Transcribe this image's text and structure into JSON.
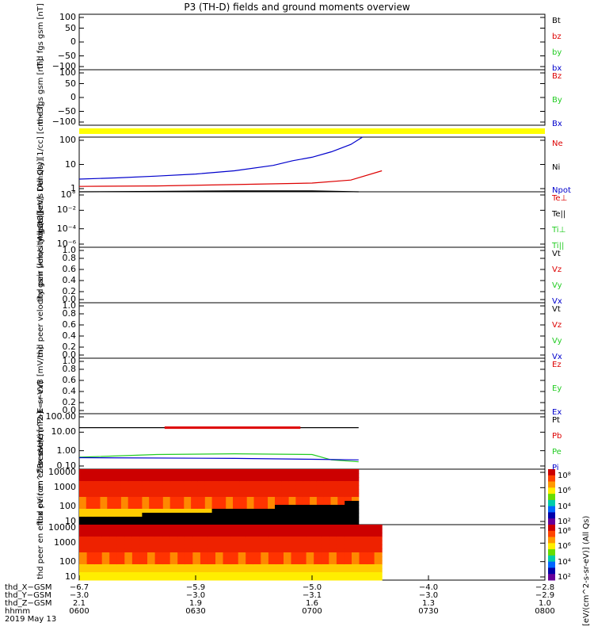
{
  "title": "P3 (TH-D) fields and ground moments overview",
  "panels": [
    {
      "id": "fgs",
      "ylabel": [
        "thd",
        "fgs",
        "gsm",
        "[nT]"
      ],
      "ticks": [
        "100",
        "50",
        "0",
        "−50",
        "−100"
      ],
      "legend": [
        {
          "t": "Bt",
          "c": "#000000"
        },
        {
          "t": "bz",
          "c": "#dd0000"
        },
        {
          "t": "by",
          "c": "#22cc22"
        },
        {
          "t": "bx",
          "c": "#0000cc"
        }
      ]
    },
    {
      "id": "fgs2",
      "ylabel": [
        "thd",
        "fgs",
        "gsm",
        "[nT]"
      ],
      "ticks": [
        "100",
        "50",
        "0",
        "−50",
        "−100"
      ],
      "legend": [
        {
          "t": "Bz",
          "c": "#dd0000"
        },
        {
          "t": "By",
          "c": "#22cc22"
        },
        {
          "t": "Bx",
          "c": "#0000cc"
        }
      ]
    },
    {
      "id": "density",
      "ylabel": [
        "Density",
        "[1/cc]",
        "[cm−3]"
      ],
      "ticks": [
        "100",
        "10",
        "1"
      ],
      "legend": [
        {
          "t": "Ne",
          "c": "#dd0000"
        },
        {
          "t": "Ni",
          "c": "#000000"
        },
        {
          "t": "Npot",
          "c": "#0000cc"
        }
      ]
    },
    {
      "id": "temp",
      "ylabel": [
        "mgat3",
        "[eV]"
      ],
      "ticks": [
        "10°",
        "10⁻²",
        "10⁻⁴",
        "10⁻⁶"
      ],
      "legend": [
        {
          "t": "Te⊥",
          "c": "#dd0000"
        },
        {
          "t": "Te||",
          "c": "#000000"
        },
        {
          "t": "Ti⊥",
          "c": "#22cc22"
        },
        {
          "t": "Ti||",
          "c": "#22cc22"
        }
      ]
    },
    {
      "id": "peir_v",
      "ylabel": [
        "thd",
        "peir",
        "velocity",
        "gsm",
        "[km/s (All Qs)]"
      ],
      "ticks": [
        "1.0",
        "0.8",
        "0.6",
        "0.4",
        "0.2",
        "0.0"
      ],
      "legend": [
        {
          "t": "Vt",
          "c": "#000000"
        },
        {
          "t": "Vz",
          "c": "#dd0000"
        },
        {
          "t": "Vy",
          "c": "#22cc22"
        },
        {
          "t": "Vx",
          "c": "#0000cc"
        }
      ]
    },
    {
      "id": "peer_v",
      "ylabel": [
        "thd",
        "peer",
        "velocity",
        "gsm",
        "[km/s (All Qs)]"
      ],
      "ticks": [
        "1.0",
        "0.8",
        "0.6",
        "0.4",
        "0.2",
        "0.0"
      ],
      "legend": [
        {
          "t": "Vt",
          "c": "#000000"
        },
        {
          "t": "Vz",
          "c": "#dd0000"
        },
        {
          "t": "Vy",
          "c": "#22cc22"
        },
        {
          "t": "Vx",
          "c": "#0000cc"
        }
      ]
    },
    {
      "id": "efield",
      "ylabel": [
        "E=−VxB",
        "[mV/m]"
      ],
      "ticks": [
        "1.0",
        "0.8",
        "0.6",
        "0.4",
        "0.2",
        "0.0"
      ],
      "legend": [
        {
          "t": "Ez",
          "c": "#dd0000"
        },
        {
          "t": "Ey",
          "c": "#22cc22"
        },
        {
          "t": "Ex",
          "c": "#0000cc"
        }
      ]
    },
    {
      "id": "pressure",
      "ylabel": [
        "Pressure",
        "[nPa]"
      ],
      "ticks": [
        "100.00",
        "10.00",
        "1.00",
        "0.10"
      ],
      "legend": [
        {
          "t": "Pt",
          "c": "#000000"
        },
        {
          "t": "Pb",
          "c": "#dd0000"
        },
        {
          "t": "Pe",
          "c": "#22cc22"
        },
        {
          "t": "Pi",
          "c": "#0000cc"
        }
      ]
    },
    {
      "id": "peir_en",
      "ylabel": [
        "thd",
        "peir",
        "en",
        "eflux",
        "eV",
        "(cm^2-s-",
        "sr-eV)"
      ],
      "ticks": [
        "10000",
        "1000",
        "100",
        "10"
      ],
      "legend": []
    },
    {
      "id": "peer_en",
      "ylabel": [
        "thd",
        "peer",
        "en",
        "eflux",
        "eV",
        "(cm^2-s-",
        "sr-eV)"
      ],
      "ticks": [
        "10000",
        "1000",
        "100",
        "10"
      ],
      "legend": []
    }
  ],
  "colorbar": {
    "title": "[eV/(cm^2-s-sr-eV)] (All Qs)",
    "labels_upper": [
      "10⁸",
      "10⁶",
      "10⁴",
      "10²"
    ],
    "labels_lower": [
      "10⁸",
      "10⁶",
      "10⁴",
      "10²"
    ]
  },
  "xaxis": {
    "rows": [
      {
        "label": "thd_X−GSM",
        "values": [
          "−6.7",
          "−5.9",
          "−5.0",
          "−4.0",
          "−2.8"
        ]
      },
      {
        "label": "thd_Y−GSM",
        "values": [
          "−3.0",
          "−3.0",
          "−3.1",
          "−3.0",
          "−2.9"
        ]
      },
      {
        "label": "thd_Z−GSM",
        "values": [
          "2.1",
          "1.9",
          "1.6",
          "1.3",
          "1.0"
        ]
      },
      {
        "label": "hhmm",
        "values": [
          "0600",
          "0630",
          "0700",
          "0730",
          "0800"
        ]
      }
    ],
    "date": "2019 May 13"
  },
  "chart_data": {
    "type": "line",
    "title": "P3 (TH-D) fields and ground moments overview",
    "x": [
      "0600",
      "0630",
      "0700",
      "0730",
      "0800"
    ],
    "density": {
      "ylim": [
        0.5,
        200
      ],
      "scale": "log",
      "series": [
        {
          "name": "Npot",
          "x": [
            "0600",
            "0610",
            "0620",
            "0630",
            "0640",
            "0650",
            "0655",
            "0700",
            "0705",
            "0710",
            "0713"
          ],
          "values": [
            2.0,
            2.3,
            2.8,
            3.5,
            5,
            9,
            15,
            22,
            40,
            90,
            200
          ]
        },
        {
          "name": "Ne",
          "x": [
            "0600",
            "0620",
            "0640",
            "0700",
            "0710",
            "0718"
          ],
          "values": [
            0.9,
            0.95,
            1.1,
            1.3,
            1.8,
            5
          ]
        },
        {
          "name": "Ni",
          "x": [
            "0600",
            "0620",
            "0640",
            "0700",
            "0712"
          ],
          "values": [
            0.5,
            0.52,
            0.55,
            0.55,
            0.5
          ]
        }
      ]
    },
    "pressure": {
      "ylim": [
        0.05,
        200
      ],
      "scale": "log",
      "series": [
        {
          "name": "Pt",
          "x": [
            "0600",
            "0712"
          ],
          "values": [
            25,
            25
          ]
        },
        {
          "name": "Pb",
          "x": [
            "0622",
            "0627",
            "0653",
            "0657"
          ],
          "values": [
            25,
            25,
            25,
            25
          ]
        },
        {
          "name": "Pe",
          "x": [
            "0600",
            "0620",
            "0640",
            "0700",
            "0705",
            "0712"
          ],
          "values": [
            0.3,
            0.45,
            0.5,
            0.45,
            0.2,
            0.15
          ]
        },
        {
          "name": "Pi",
          "x": [
            "0600",
            "0640",
            "0700",
            "0712"
          ],
          "values": [
            0.28,
            0.25,
            0.22,
            0.2
          ]
        }
      ]
    }
  }
}
